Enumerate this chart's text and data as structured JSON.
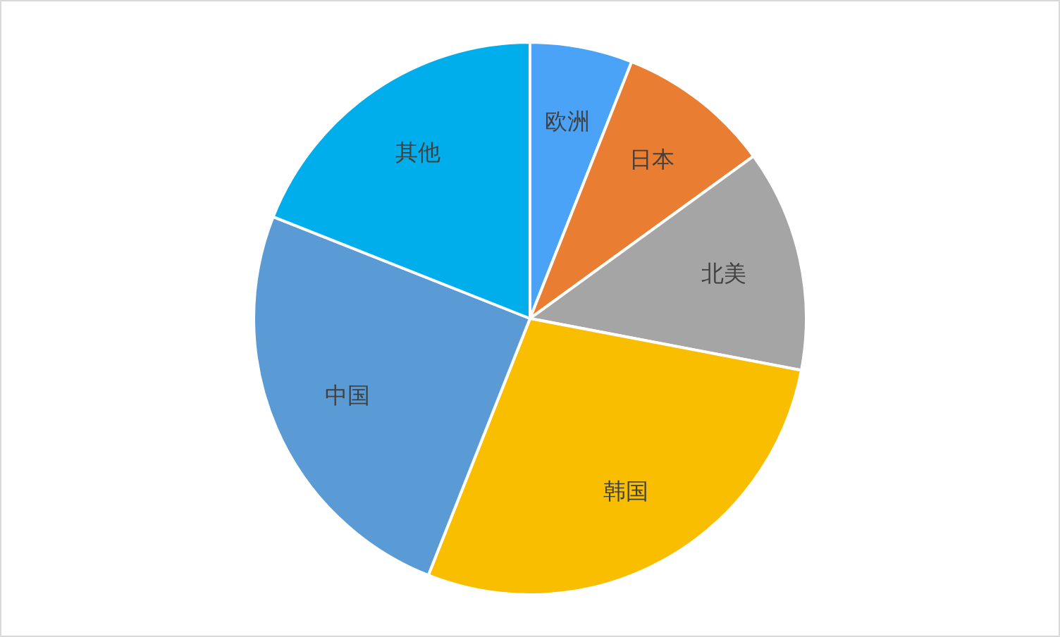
{
  "chart_data": {
    "type": "pie",
    "categories": [
      "欧洲",
      "日本",
      "北美",
      "韩国",
      "中国",
      "其他"
    ],
    "values": [
      6,
      9,
      13,
      28,
      25,
      19
    ],
    "colors": [
      "#4aa3f6",
      "#e97e33",
      "#a5a5a5",
      "#f9be00",
      "#5b9bd5",
      "#00aeec"
    ],
    "legend": false
  }
}
